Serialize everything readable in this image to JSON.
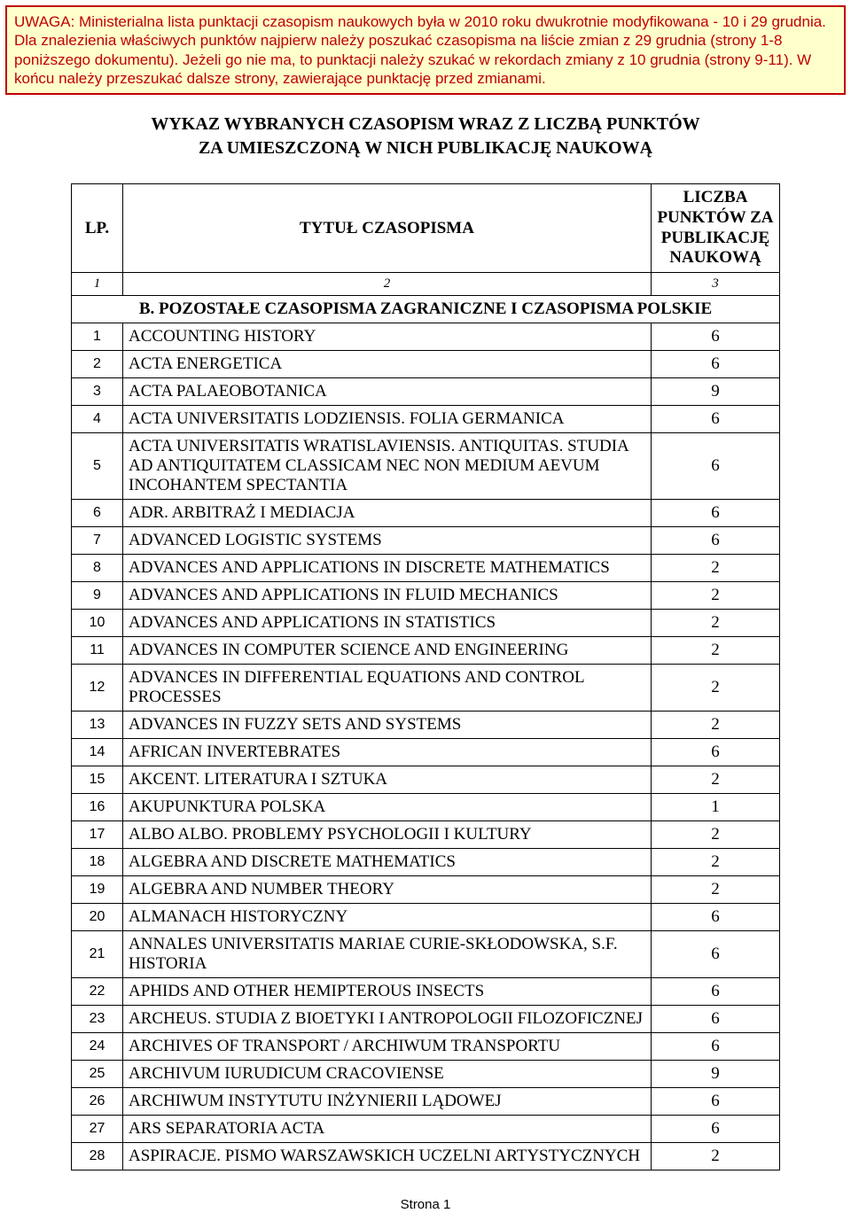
{
  "notice": {
    "text": "UWAGA: Ministerialna lista punktacji czasopism naukowych była w 2010 roku dwukrotnie modyfikowana - 10 i 29 grudnia. Dla znalezienia właściwych punktów najpierw należy poszukać czasopisma na liście zmian z 29 grudnia (strony 1-8 poniższego dokumentu). Jeżeli go nie ma, to punktacji należy szukać w rekordach zmiany z 10 grudnia (strony 9-11). W końcu należy przeszukać dalsze strony, zawierające punktację przed zmianami."
  },
  "heading": {
    "line1": "WYKAZ WYBRANYCH CZASOPISM WRAZ Z LICZBĄ PUNKTÓW",
    "line2": "ZA UMIESZCZONĄ W NICH PUBLIKACJĘ NAUKOWĄ"
  },
  "headers": {
    "lp": "LP.",
    "title": "TYTUŁ CZASOPISMA",
    "points": "LICZBA PUNKTÓW ZA PUBLIKACJĘ NAUKOWĄ",
    "num1": "1",
    "num2": "2",
    "num3": "3"
  },
  "section": {
    "label": "B. POZOSTAŁE CZASOPISMA ZAGRANICZNE I CZASOPISMA POLSKIE"
  },
  "rows": [
    {
      "lp": "1",
      "title": "ACCOUNTING HISTORY",
      "pts": "6"
    },
    {
      "lp": "2",
      "title": "ACTA ENERGETICA",
      "pts": "6"
    },
    {
      "lp": "3",
      "title": "ACTA PALAEOBOTANICA",
      "pts": "9"
    },
    {
      "lp": "4",
      "title": "ACTA UNIVERSITATIS LODZIENSIS. FOLIA GERMANICA",
      "pts": "6"
    },
    {
      "lp": "5",
      "title": "ACTA UNIVERSITATIS WRATISLAVIENSIS. ANTIQUITAS. STUDIA AD ANTIQUITATEM CLASSICAM NEC NON MEDIUM AEVUM INCOHANTEM SPECTANTIA",
      "pts": "6"
    },
    {
      "lp": "6",
      "title": "ADR. ARBITRAŻ I MEDIACJA",
      "pts": "6"
    },
    {
      "lp": "7",
      "title": "ADVANCED LOGISTIC SYSTEMS",
      "pts": "6"
    },
    {
      "lp": "8",
      "title": "ADVANCES AND APPLICATIONS IN DISCRETE MATHEMATICS",
      "pts": "2"
    },
    {
      "lp": "9",
      "title": "ADVANCES AND APPLICATIONS IN FLUID MECHANICS",
      "pts": "2"
    },
    {
      "lp": "10",
      "title": "ADVANCES AND APPLICATIONS IN STATISTICS",
      "pts": "2"
    },
    {
      "lp": "11",
      "title": "ADVANCES IN COMPUTER SCIENCE AND ENGINEERING",
      "pts": "2"
    },
    {
      "lp": "12",
      "title": "ADVANCES IN DIFFERENTIAL EQUATIONS AND CONTROL PROCESSES",
      "pts": "2"
    },
    {
      "lp": "13",
      "title": "ADVANCES IN FUZZY SETS AND SYSTEMS",
      "pts": "2"
    },
    {
      "lp": "14",
      "title": "AFRICAN INVERTEBRATES",
      "pts": "6"
    },
    {
      "lp": "15",
      "title": "AKCENT. LITERATURA I SZTUKA",
      "pts": "2"
    },
    {
      "lp": "16",
      "title": "AKUPUNKTURA POLSKA",
      "pts": "1"
    },
    {
      "lp": "17",
      "title": "ALBO ALBO. PROBLEMY PSYCHOLOGII I KULTURY",
      "pts": "2"
    },
    {
      "lp": "18",
      "title": "ALGEBRA AND DISCRETE MATHEMATICS",
      "pts": "2"
    },
    {
      "lp": "19",
      "title": "ALGEBRA AND NUMBER THEORY",
      "pts": "2"
    },
    {
      "lp": "20",
      "title": "ALMANACH HISTORYCZNY",
      "pts": "6"
    },
    {
      "lp": "21",
      "title": "ANNALES UNIVERSITATIS MARIAE CURIE-SKŁODOWSKA, S.F. HISTORIA",
      "pts": "6"
    },
    {
      "lp": "22",
      "title": "APHIDS AND OTHER HEMIPTEROUS INSECTS",
      "pts": "6"
    },
    {
      "lp": "23",
      "title": "ARCHEUS. STUDIA Z BIOETYKI I ANTROPOLOGII FILOZOFICZNEJ",
      "pts": "6"
    },
    {
      "lp": "24",
      "title": "ARCHIVES OF TRANSPORT / ARCHIWUM TRANSPORTU",
      "pts": "6"
    },
    {
      "lp": "25",
      "title": "ARCHIVUM IURUDICUM CRACOVIENSE",
      "pts": "9"
    },
    {
      "lp": "26",
      "title": "ARCHIWUM INSTYTUTU INŻYNIERII LĄDOWEJ",
      "pts": "6"
    },
    {
      "lp": "27",
      "title": "ARS SEPARATORIA ACTA",
      "pts": "6"
    },
    {
      "lp": "28",
      "title": "ASPIRACJE. PISMO WARSZAWSKICH UCZELNI ARTYSTYCZNYCH",
      "pts": "2"
    }
  ],
  "footer": {
    "page": "Strona 1"
  }
}
